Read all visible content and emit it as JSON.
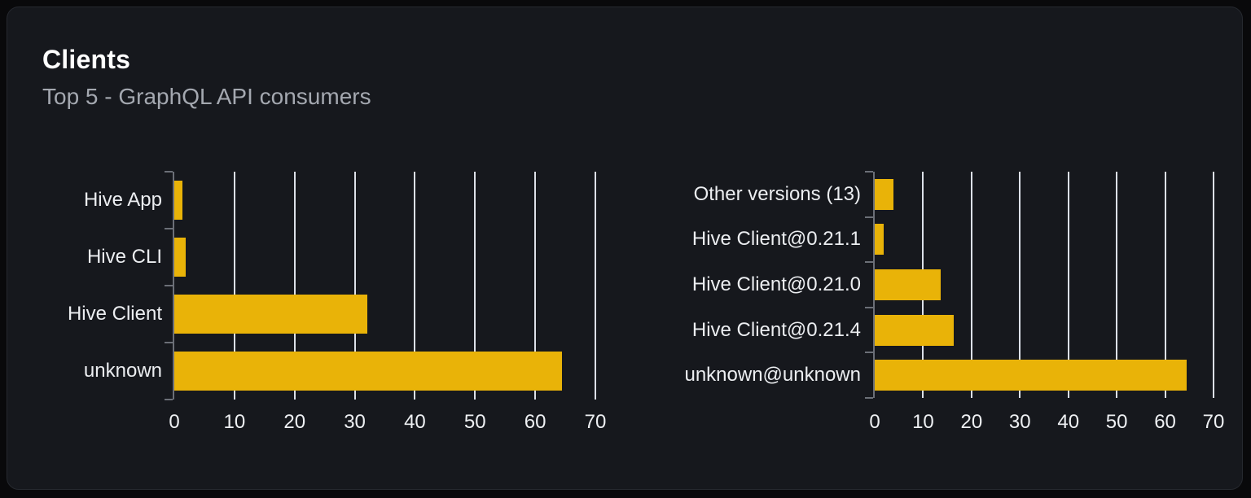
{
  "card": {
    "title": "Clients",
    "subtitle": "Top 5 - GraphQL API consumers"
  },
  "colors": {
    "bar": "#e9b308",
    "card_background": "#16181d",
    "page_background": "#09090b",
    "gridline": "#dce0e8",
    "axis": "#6b6f77",
    "title_text": "#ffffff",
    "subtitle_text": "#a4a8b0",
    "label_text": "#eceef1"
  },
  "chart_data": [
    {
      "type": "bar",
      "orientation": "horizontal",
      "name": "clients-by-name",
      "categories": [
        "Hive App",
        "Hive CLI",
        "Hive Client",
        "unknown"
      ],
      "values": [
        1.3,
        1.9,
        32.1,
        64.4
      ],
      "xlim": [
        0,
        70
      ],
      "xticks": [
        0,
        10,
        20,
        30,
        40,
        50,
        60,
        70
      ],
      "grid": true,
      "legend": false,
      "bar_color": "#e9b308"
    },
    {
      "type": "bar",
      "orientation": "horizontal",
      "name": "clients-by-version",
      "categories": [
        "Other versions (13)",
        "Hive Client@0.21.1",
        "Hive Client@0.21.0",
        "Hive Client@0.21.4",
        "unknown@unknown"
      ],
      "values": [
        3.9,
        1.8,
        13.7,
        16.4,
        64.4
      ],
      "xlim": [
        0,
        70
      ],
      "xticks": [
        0,
        10,
        20,
        30,
        40,
        50,
        60,
        70
      ],
      "grid": true,
      "legend": false,
      "bar_color": "#e9b308"
    }
  ]
}
